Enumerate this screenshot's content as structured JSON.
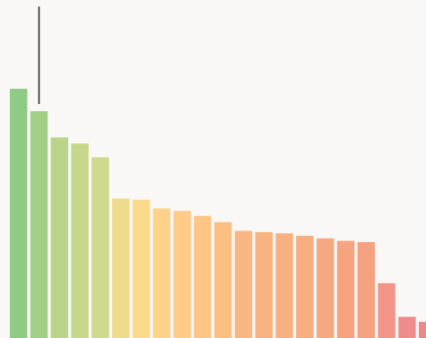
{
  "chart_data": {
    "type": "bar",
    "title": "",
    "xlabel": "",
    "ylabel": "",
    "values": [
      100,
      91,
      80.5,
      78,
      72.5,
      56,
      55.5,
      52,
      51,
      49,
      46.5,
      43,
      42.5,
      42,
      41,
      40,
      39,
      38.5,
      22,
      8.5,
      6.5
    ],
    "ylim": [
      0,
      100
    ],
    "error_bar": {
      "index": 1,
      "high": 133
    },
    "grid": false,
    "legend": "none",
    "colors": [
      "#8ecb85",
      "#a2cf86",
      "#b9d488",
      "#c5d78a",
      "#cfd88b",
      "#eedb8c",
      "#fcda8c",
      "#ffd28a",
      "#ffcc88",
      "#fec686",
      "#fbbe83",
      "#f9b682",
      "#f8b381",
      "#f8b080",
      "#f7ad80",
      "#f6a880",
      "#f6a480",
      "#f5a281",
      "#f29487",
      "#ef8b8b",
      "#ee898a"
    ],
    "error_color": "#222222"
  }
}
